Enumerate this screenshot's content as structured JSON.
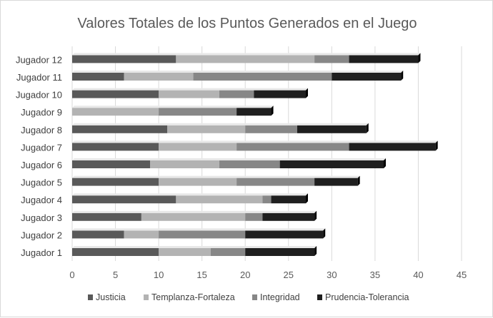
{
  "chart_data": {
    "type": "bar",
    "orientation": "horizontal",
    "stacked": true,
    "title": "Valores Totales de los Puntos Generados  en el Juego",
    "xlabel": "",
    "ylabel": "",
    "xlim": [
      0,
      45
    ],
    "xticks": [
      0,
      5,
      10,
      15,
      20,
      25,
      30,
      35,
      40,
      45
    ],
    "grid": true,
    "legend_position": "bottom",
    "categories": [
      "Jugador 1",
      "Jugador 2",
      "Jugador 3",
      "Jugador 4",
      "Jugador 5",
      "Jugador 6",
      "Jugador 7",
      "Jugador 8",
      "Jugador 9",
      "Jugador 10",
      "Jugador 11",
      "Jugador 12"
    ],
    "series": [
      {
        "name": "Justicia",
        "color": "#595959",
        "values": [
          10,
          6,
          8,
          12,
          10,
          9,
          10,
          11,
          0,
          10,
          6,
          12
        ]
      },
      {
        "name": "Templanza-Fortaleza",
        "color": "#b3b3b3",
        "values": [
          6,
          4,
          12,
          10,
          9,
          8,
          9,
          9,
          10,
          7,
          8,
          16
        ]
      },
      {
        "name": "Integridad",
        "color": "#878787",
        "values": [
          4,
          10,
          2,
          1,
          9,
          7,
          13,
          6,
          9,
          4,
          16,
          4
        ]
      },
      {
        "name": "Prudencia-Tolerancia",
        "color": "#1f1f1f",
        "values": [
          8,
          9,
          6,
          4,
          5,
          12,
          10,
          8,
          4,
          6,
          8,
          8
        ]
      }
    ]
  }
}
